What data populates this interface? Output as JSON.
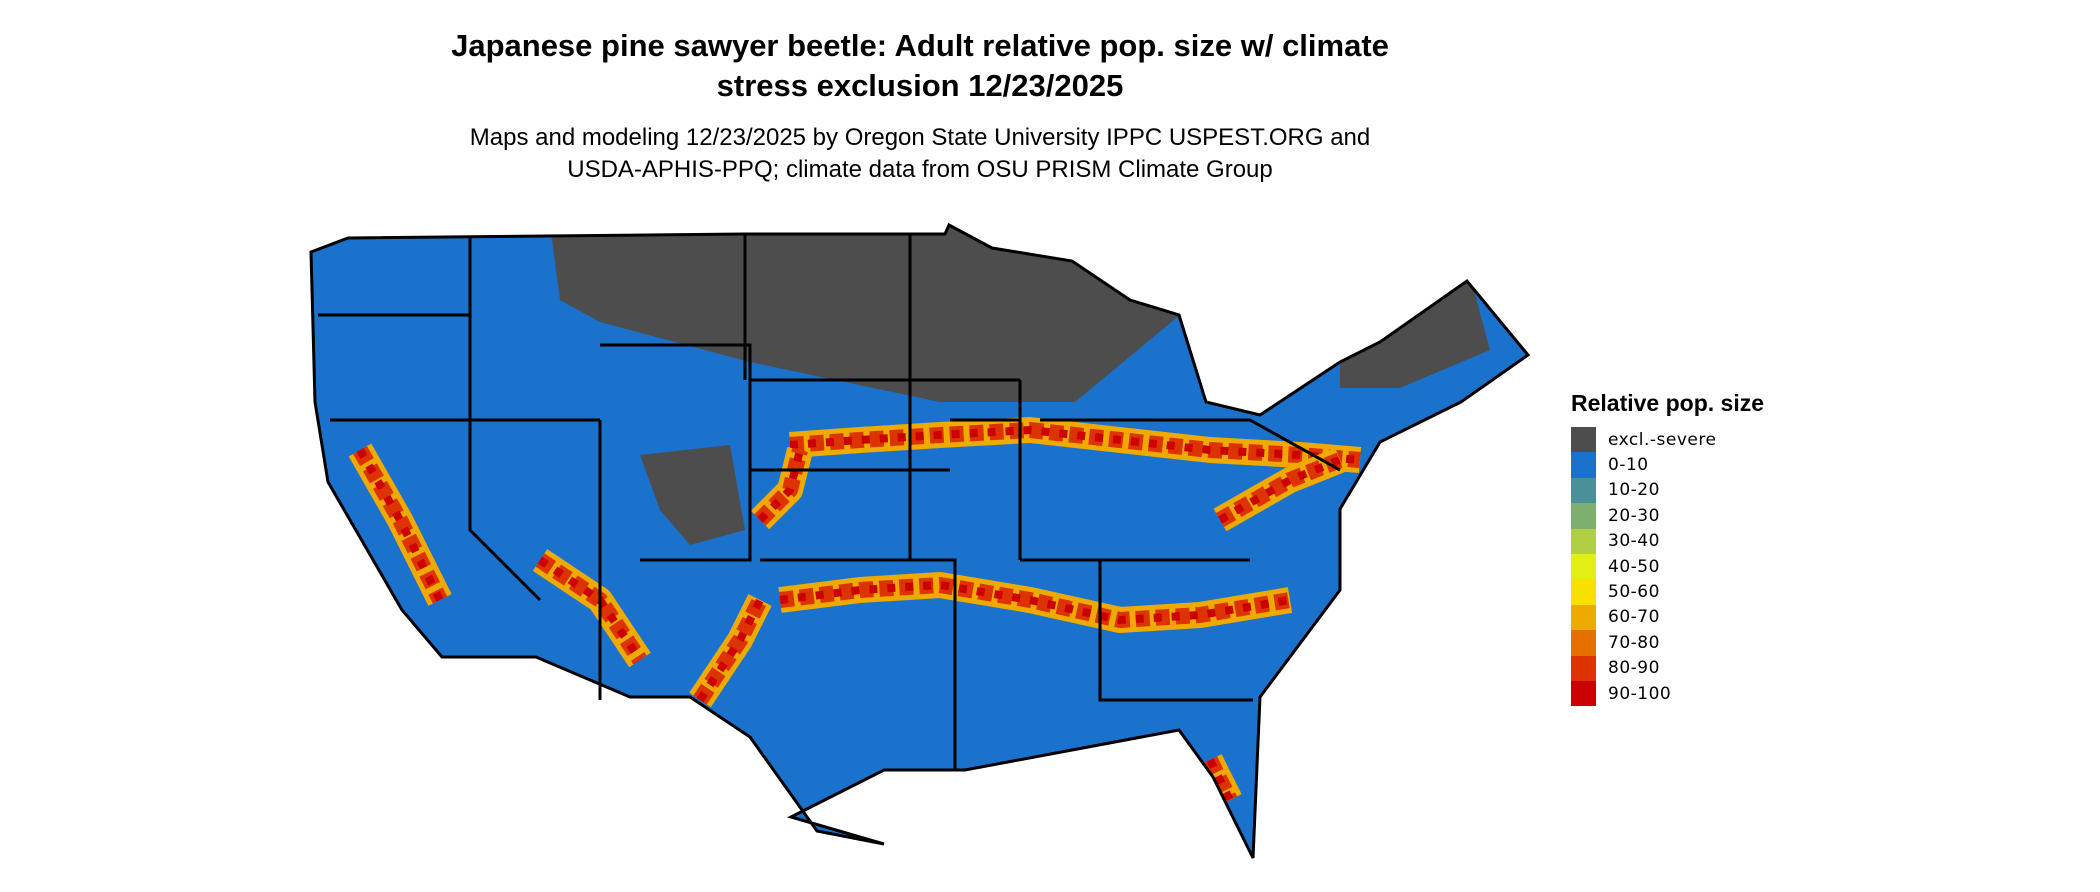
{
  "title_lines": [
    "Japanese pine sawyer beetle: Adult relative pop. size w/ climate",
    "stress exclusion 12/23/2025"
  ],
  "subtitle_lines": [
    "Maps and modeling 12/23/2025 by Oregon State University IPPC USPEST.ORG and",
    "USDA-APHIS-PPQ; climate data from OSU PRISM Climate Group"
  ],
  "map": {
    "region": "Contiguous United States",
    "border_color": "#000000"
  },
  "legend": {
    "title": "Relative pop. size",
    "items": [
      {
        "label": "excl.-severe",
        "color": "#4d4d4d"
      },
      {
        "label": "0-10",
        "color": "#1a72cc"
      },
      {
        "label": "10-20",
        "color": "#4a9099"
      },
      {
        "label": "20-30",
        "color": "#7daf6e"
      },
      {
        "label": "30-40",
        "color": "#b2cf44"
      },
      {
        "label": "40-50",
        "color": "#e3ef14"
      },
      {
        "label": "50-60",
        "color": "#f8e000"
      },
      {
        "label": "60-70",
        "color": "#efaa00"
      },
      {
        "label": "70-80",
        "color": "#e57000"
      },
      {
        "label": "80-90",
        "color": "#dc3300"
      },
      {
        "label": "90-100",
        "color": "#cc0000"
      }
    ]
  }
}
